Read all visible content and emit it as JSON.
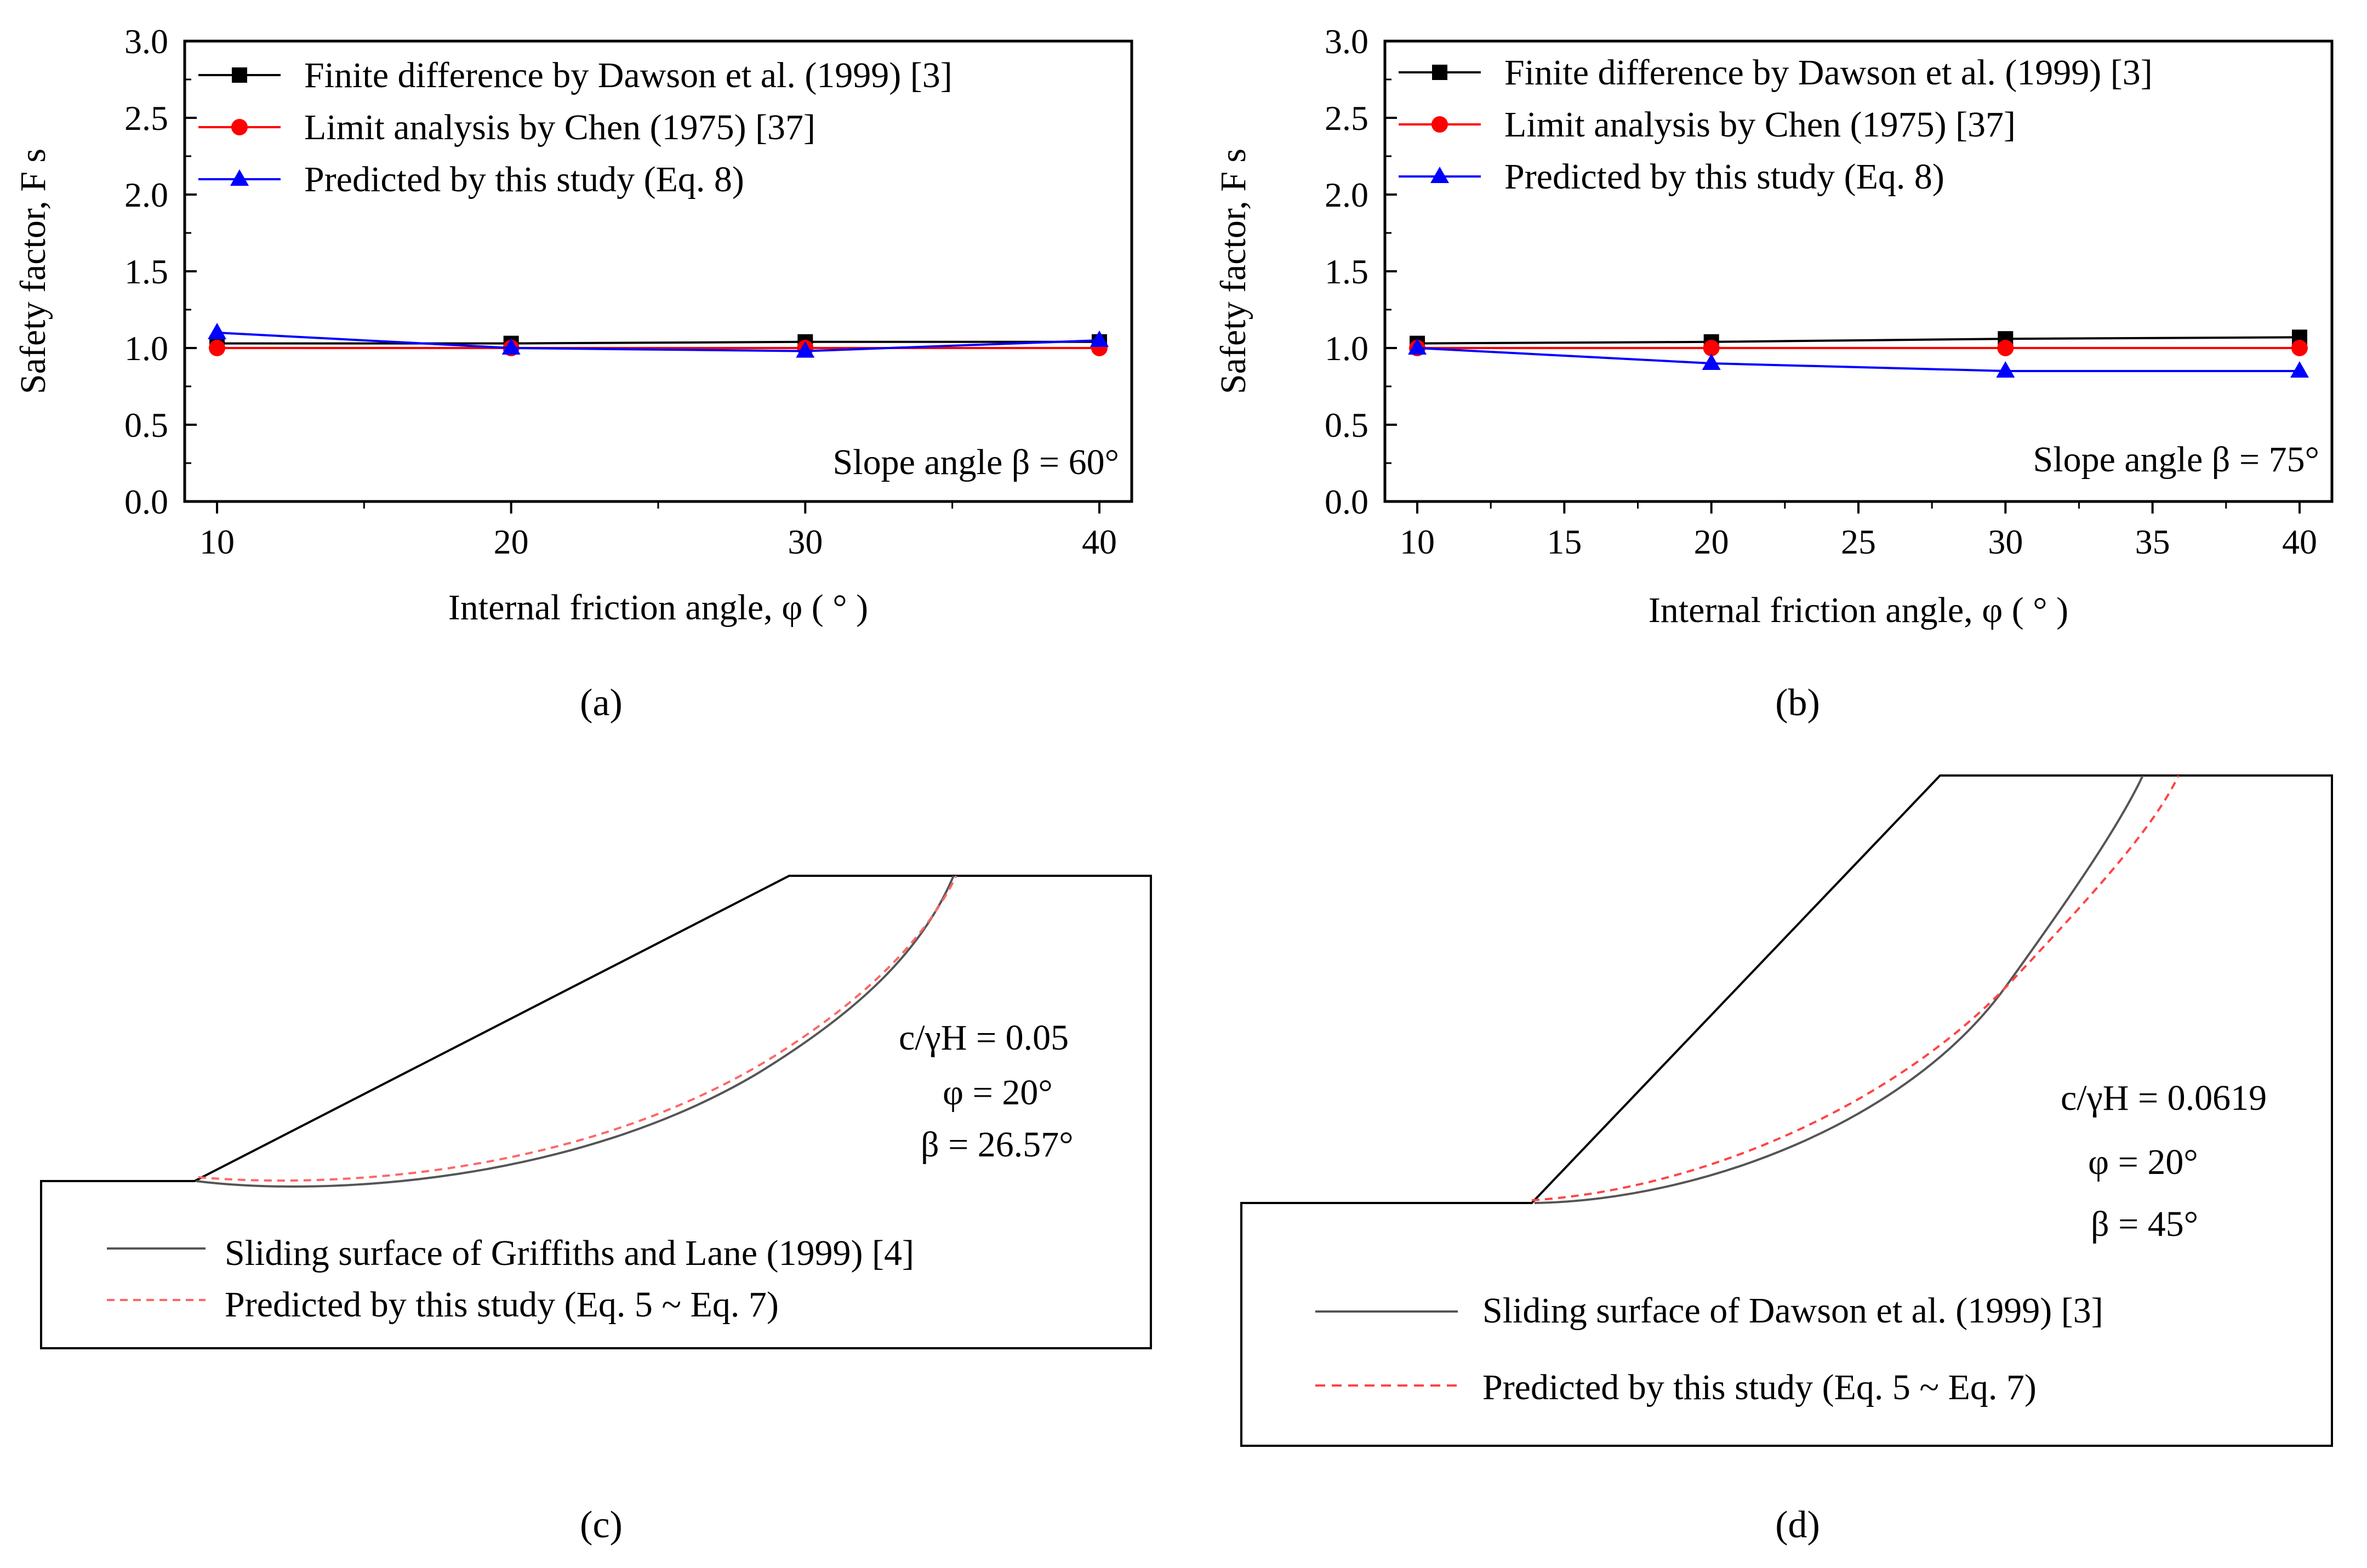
{
  "chart_data": [
    {
      "panel": "a",
      "panel_label": "(a)",
      "type": "line",
      "x": [
        10,
        20,
        30,
        40
      ],
      "xlim": [
        8.9,
        41.1
      ],
      "ylim": [
        0.0,
        3.0
      ],
      "xticks": [
        10,
        20,
        30,
        40
      ],
      "xtick_labels": [
        "10",
        "20",
        "30",
        "40"
      ],
      "yticks": [
        0.0,
        0.5,
        1.0,
        1.5,
        2.0,
        2.5,
        3.0
      ],
      "ytick_labels": [
        "0.0",
        "0.5",
        "1.0",
        "1.5",
        "2.0",
        "2.5",
        "3.0"
      ],
      "xlabel": "Internal friction angle, φ ( ° )",
      "ylabel": "Safety factor, F s",
      "annotation": "Slope angle β = 60°",
      "series": [
        {
          "name": "Finite difference by Dawson et al. (1999) [3]",
          "marker": "square",
          "color": "#000000",
          "values": [
            1.03,
            1.03,
            1.04,
            1.04
          ]
        },
        {
          "name": "Limit analysis by Chen (1975) [37]",
          "marker": "circle",
          "color": "#ff0000",
          "values": [
            1.0,
            1.0,
            1.0,
            1.0
          ]
        },
        {
          "name": "Predicted by this study (Eq. 8)",
          "marker": "triangle",
          "color": "#0000ff",
          "values": [
            1.1,
            1.0,
            0.98,
            1.05
          ]
        }
      ]
    },
    {
      "panel": "b",
      "panel_label": "(b)",
      "type": "line",
      "x": [
        10,
        20,
        30,
        40
      ],
      "xlim": [
        8.9,
        41.1
      ],
      "ylim": [
        0.0,
        3.0
      ],
      "xticks": [
        10,
        15,
        20,
        25,
        30,
        35,
        40
      ],
      "xtick_labels": [
        "10",
        "15",
        "20",
        "25",
        "30",
        "35",
        "40"
      ],
      "yticks": [
        0.0,
        0.5,
        1.0,
        1.5,
        2.0,
        2.5,
        3.0
      ],
      "ytick_labels": [
        "0.0",
        "0.5",
        "1.0",
        "1.5",
        "2.0",
        "2.5",
        "3.0"
      ],
      "xlabel": "Internal friction angle, φ ( ° )",
      "ylabel": "Safety factor, F s",
      "annotation": "Slope angle β = 75°",
      "series": [
        {
          "name": "Finite difference by Dawson et al. (1999) [3]",
          "marker": "square",
          "color": "#000000",
          "values": [
            1.03,
            1.04,
            1.06,
            1.07
          ]
        },
        {
          "name": "Limit analysis by Chen (1975) [37]",
          "marker": "circle",
          "color": "#ff0000",
          "values": [
            1.0,
            1.0,
            1.0,
            1.0
          ]
        },
        {
          "name": "Predicted by this study (Eq. 8)",
          "marker": "triangle",
          "color": "#0000ff",
          "values": [
            1.0,
            0.9,
            0.85,
            0.85
          ]
        }
      ]
    }
  ],
  "diagrams": [
    {
      "panel": "c",
      "panel_label": "(c)",
      "annotations": [
        "c/γH = 0.05",
        "φ = 20°",
        "β = 26.57°"
      ],
      "legend": [
        {
          "label": "Sliding surface of Griffiths and Lane (1999) [4]",
          "color": "#555555",
          "style": "solid"
        },
        {
          "label": "Predicted by this study (Eq. 5 ~ Eq. 7)",
          "color": "#ff6666",
          "style": "dashed"
        }
      ]
    },
    {
      "panel": "d",
      "panel_label": "(d)",
      "annotations": [
        "c/γH = 0.0619",
        "φ = 20°",
        "β = 45°"
      ],
      "legend": [
        {
          "label": "Sliding surface of Dawson et al. (1999) [3]",
          "color": "#555555",
          "style": "solid"
        },
        {
          "label": "Predicted by this study (Eq. 5 ~ Eq. 7)",
          "color": "#ff4444",
          "style": "dashed"
        }
      ]
    }
  ]
}
